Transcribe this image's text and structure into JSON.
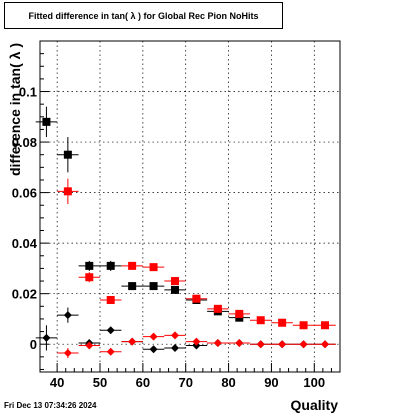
{
  "footer_timestamp": "Fri Dec 13 07:34:26 2024",
  "chart_data": {
    "type": "scatter",
    "title": "Fitted difference in tan( λ ) for Global Rec Pion NoHits",
    "xlabel": "Quality",
    "ylabel": "difference in tan( λ )",
    "xlim": [
      36,
      106
    ],
    "ylim": [
      -0.011,
      0.12
    ],
    "x_ticks": [
      40,
      50,
      60,
      70,
      80,
      90,
      100
    ],
    "y_ticks": [
      0,
      0.02,
      0.04,
      0.06,
      0.08,
      0.1
    ],
    "y_tick_labels": [
      "0",
      "0.02",
      "0.04",
      "0.06",
      "0.08",
      "0.1"
    ],
    "grid": true,
    "series": [
      {
        "marker": "square",
        "color": "#000000",
        "points": [
          {
            "x": 37.5,
            "y": 0.088,
            "xerr": 2.5,
            "yerr": 0.006
          },
          {
            "x": 42.5,
            "y": 0.075,
            "xerr": 2.5,
            "yerr": 0.007
          },
          {
            "x": 47.5,
            "y": 0.031,
            "xerr": 2.5,
            "yerr": 0.002
          },
          {
            "x": 52.5,
            "y": 0.031,
            "xerr": 2.5,
            "yerr": 0.002
          },
          {
            "x": 57.5,
            "y": 0.023,
            "xerr": 2.5,
            "yerr": 0.001
          },
          {
            "x": 62.5,
            "y": 0.023,
            "xerr": 2.5,
            "yerr": 0.001
          },
          {
            "x": 67.5,
            "y": 0.0215,
            "xerr": 2.5,
            "yerr": 0.001
          },
          {
            "x": 72.5,
            "y": 0.0175,
            "xerr": 2.5,
            "yerr": 0.001
          },
          {
            "x": 77.5,
            "y": 0.013,
            "xerr": 2.5,
            "yerr": 0.001
          },
          {
            "x": 82.5,
            "y": 0.0105,
            "xerr": 2.5,
            "yerr": 0.001
          }
        ]
      },
      {
        "marker": "square",
        "color": "#ff0000",
        "points": [
          {
            "x": 42.5,
            "y": 0.0605,
            "xerr": 2.5,
            "yerr": 0.005
          },
          {
            "x": 47.5,
            "y": 0.0265,
            "xerr": 2.5,
            "yerr": 0.002
          },
          {
            "x": 52.5,
            "y": 0.0175,
            "xerr": 2.5,
            "yerr": 0.001
          },
          {
            "x": 57.5,
            "y": 0.031,
            "xerr": 2.5,
            "yerr": 0.001
          },
          {
            "x": 62.5,
            "y": 0.0305,
            "xerr": 2.5,
            "yerr": 0.001
          },
          {
            "x": 67.5,
            "y": 0.025,
            "xerr": 2.5,
            "yerr": 0.001
          },
          {
            "x": 72.5,
            "y": 0.018,
            "xerr": 2.5,
            "yerr": 0.001
          },
          {
            "x": 77.5,
            "y": 0.014,
            "xerr": 2.5,
            "yerr": 0.001
          },
          {
            "x": 82.5,
            "y": 0.012,
            "xerr": 2.5,
            "yerr": 0.001
          },
          {
            "x": 87.5,
            "y": 0.0095,
            "xerr": 2.5,
            "yerr": 0.001
          },
          {
            "x": 92.5,
            "y": 0.0085,
            "xerr": 2.5,
            "yerr": 0.001
          },
          {
            "x": 97.5,
            "y": 0.0075,
            "xerr": 2.5,
            "yerr": 0.001
          },
          {
            "x": 102.5,
            "y": 0.0075,
            "xerr": 2.5,
            "yerr": 0.001
          }
        ]
      },
      {
        "marker": "diamond",
        "color": "#000000",
        "points": [
          {
            "x": 37.5,
            "y": 0.0025,
            "xerr": 2.5,
            "yerr": 0.005
          },
          {
            "x": 42.5,
            "y": 0.0115,
            "xerr": 2.5,
            "yerr": 0.003
          },
          {
            "x": 47.5,
            "y": 0.0005,
            "xerr": 2.5,
            "yerr": 0.001
          },
          {
            "x": 52.5,
            "y": 0.0055,
            "xerr": 2.5,
            "yerr": 0.001
          },
          {
            "x": 57.5,
            "y": 0.001,
            "xerr": 2.5,
            "yerr": 0.0007
          },
          {
            "x": 62.5,
            "y": -0.002,
            "xerr": 2.5,
            "yerr": 0.0007
          },
          {
            "x": 67.5,
            "y": -0.0015,
            "xerr": 2.5,
            "yerr": 0.0007
          },
          {
            "x": 72.5,
            "y": -0.0005,
            "xerr": 2.5,
            "yerr": 0.0006
          },
          {
            "x": 77.5,
            "y": 0.0005,
            "xerr": 2.5,
            "yerr": 0.0005
          },
          {
            "x": 82.5,
            "y": 0.0005,
            "xerr": 2.5,
            "yerr": 0.0005
          },
          {
            "x": 87.5,
            "y": 0.0,
            "xerr": 2.5,
            "yerr": 0.0005
          },
          {
            "x": 92.5,
            "y": 0.0,
            "xerr": 2.5,
            "yerr": 0.0005
          },
          {
            "x": 97.5,
            "y": 0.0,
            "xerr": 2.5,
            "yerr": 0.0005
          },
          {
            "x": 102.5,
            "y": 0.0,
            "xerr": 2.5,
            "yerr": 0.0005
          }
        ]
      },
      {
        "marker": "diamond",
        "color": "#ff0000",
        "points": [
          {
            "x": 42.5,
            "y": -0.0035,
            "xerr": 2.5,
            "yerr": 0.002
          },
          {
            "x": 47.5,
            "y": -0.0005,
            "xerr": 2.5,
            "yerr": 0.001
          },
          {
            "x": 52.5,
            "y": -0.003,
            "xerr": 2.5,
            "yerr": 0.001
          },
          {
            "x": 57.5,
            "y": 0.001,
            "xerr": 2.5,
            "yerr": 0.0007
          },
          {
            "x": 62.5,
            "y": 0.003,
            "xerr": 2.5,
            "yerr": 0.0007
          },
          {
            "x": 67.5,
            "y": 0.0035,
            "xerr": 2.5,
            "yerr": 0.0007
          },
          {
            "x": 72.5,
            "y": 0.001,
            "xerr": 2.5,
            "yerr": 0.0006
          },
          {
            "x": 77.5,
            "y": 0.0005,
            "xerr": 2.5,
            "yerr": 0.0005
          },
          {
            "x": 82.5,
            "y": 0.0005,
            "xerr": 2.5,
            "yerr": 0.0005
          },
          {
            "x": 87.5,
            "y": 0.0,
            "xerr": 2.5,
            "yerr": 0.0005
          },
          {
            "x": 92.5,
            "y": 0.0,
            "xerr": 2.5,
            "yerr": 0.0005
          },
          {
            "x": 97.5,
            "y": 0.0,
            "xerr": 2.5,
            "yerr": 0.0005
          },
          {
            "x": 102.5,
            "y": 0.0,
            "xerr": 2.5,
            "yerr": 0.0005
          }
        ]
      }
    ]
  }
}
